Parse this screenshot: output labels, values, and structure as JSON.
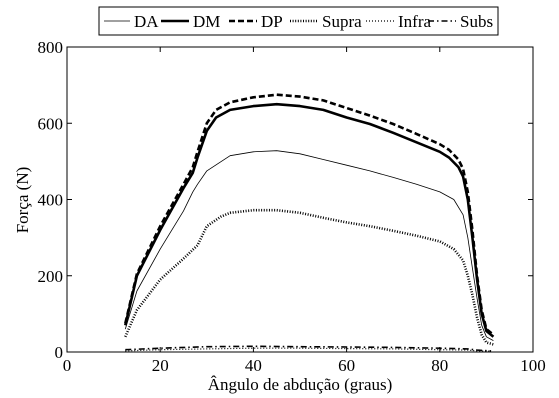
{
  "chart_data": {
    "type": "line",
    "title": "",
    "xlabel": "Ângulo de abdução (graus)",
    "ylabel": "Força (N)",
    "xlim": [
      0,
      100
    ],
    "ylim": [
      0,
      800
    ],
    "xticks": [
      0,
      20,
      40,
      60,
      80,
      100
    ],
    "yticks": [
      0,
      200,
      400,
      600,
      800
    ],
    "grid": false,
    "legend_position": "top",
    "series": [
      {
        "name": "DA",
        "style": "solid-thin",
        "points": [
          [
            12.5,
            60
          ],
          [
            15,
            160
          ],
          [
            20,
            270
          ],
          [
            25,
            370
          ],
          [
            27,
            420
          ],
          [
            28,
            440
          ],
          [
            30,
            475
          ],
          [
            35,
            515
          ],
          [
            40,
            525
          ],
          [
            45,
            528
          ],
          [
            50,
            520
          ],
          [
            55,
            505
          ],
          [
            60,
            490
          ],
          [
            65,
            475
          ],
          [
            70,
            458
          ],
          [
            75,
            440
          ],
          [
            80,
            420
          ],
          [
            83,
            400
          ],
          [
            85,
            360
          ],
          [
            86,
            300
          ],
          [
            87,
            220
          ],
          [
            88,
            140
          ],
          [
            89,
            70
          ],
          [
            90,
            40
          ],
          [
            91.5,
            30
          ]
        ]
      },
      {
        "name": "DM",
        "style": "solid-thick",
        "points": [
          [
            12.5,
            70
          ],
          [
            15,
            200
          ],
          [
            20,
            320
          ],
          [
            25,
            430
          ],
          [
            27,
            470
          ],
          [
            28,
            510
          ],
          [
            30,
            580
          ],
          [
            32,
            615
          ],
          [
            35,
            635
          ],
          [
            40,
            645
          ],
          [
            45,
            650
          ],
          [
            50,
            645
          ],
          [
            55,
            635
          ],
          [
            60,
            615
          ],
          [
            65,
            598
          ],
          [
            70,
            575
          ],
          [
            75,
            550
          ],
          [
            80,
            525
          ],
          [
            82,
            510
          ],
          [
            84,
            485
          ],
          [
            85,
            460
          ],
          [
            86,
            400
          ],
          [
            87,
            300
          ],
          [
            88,
            190
          ],
          [
            89,
            100
          ],
          [
            90,
            55
          ],
          [
            91.5,
            40
          ]
        ]
      },
      {
        "name": "DP",
        "style": "dashed-thick",
        "points": [
          [
            12.5,
            75
          ],
          [
            15,
            205
          ],
          [
            20,
            330
          ],
          [
            25,
            440
          ],
          [
            27,
            485
          ],
          [
            28,
            525
          ],
          [
            30,
            600
          ],
          [
            32,
            635
          ],
          [
            35,
            655
          ],
          [
            40,
            668
          ],
          [
            45,
            675
          ],
          [
            50,
            670
          ],
          [
            55,
            660
          ],
          [
            60,
            640
          ],
          [
            65,
            620
          ],
          [
            70,
            598
          ],
          [
            75,
            572
          ],
          [
            80,
            545
          ],
          [
            82,
            530
          ],
          [
            84,
            505
          ],
          [
            85,
            480
          ],
          [
            86,
            420
          ],
          [
            87,
            320
          ],
          [
            88,
            200
          ],
          [
            89,
            110
          ],
          [
            90,
            60
          ],
          [
            91.5,
            45
          ]
        ]
      },
      {
        "name": "Supra",
        "style": "dotted-thick",
        "points": [
          [
            12.5,
            40
          ],
          [
            15,
            110
          ],
          [
            20,
            190
          ],
          [
            25,
            245
          ],
          [
            28,
            280
          ],
          [
            30,
            330
          ],
          [
            33,
            355
          ],
          [
            35,
            365
          ],
          [
            40,
            372
          ],
          [
            45,
            372
          ],
          [
            50,
            365
          ],
          [
            55,
            352
          ],
          [
            60,
            340
          ],
          [
            65,
            330
          ],
          [
            70,
            318
          ],
          [
            75,
            305
          ],
          [
            80,
            290
          ],
          [
            83,
            270
          ],
          [
            85,
            240
          ],
          [
            86,
            200
          ],
          [
            87,
            150
          ],
          [
            88,
            90
          ],
          [
            89,
            45
          ],
          [
            90,
            25
          ],
          [
            91.5,
            20
          ]
        ]
      },
      {
        "name": "Infra",
        "style": "dotted-thin",
        "points": [
          [
            12.5,
            3
          ],
          [
            20,
            6
          ],
          [
            30,
            8
          ],
          [
            40,
            10
          ],
          [
            50,
            10
          ],
          [
            60,
            9
          ],
          [
            70,
            8
          ],
          [
            80,
            6
          ],
          [
            86,
            5
          ],
          [
            88,
            3
          ],
          [
            91,
            2
          ]
        ]
      },
      {
        "name": "Subs",
        "style": "dashdot",
        "points": [
          [
            12.5,
            6
          ],
          [
            20,
            10
          ],
          [
            30,
            14
          ],
          [
            40,
            15
          ],
          [
            50,
            14
          ],
          [
            60,
            13
          ],
          [
            70,
            12
          ],
          [
            80,
            10
          ],
          [
            86,
            8
          ],
          [
            88,
            5
          ],
          [
            91,
            3
          ]
        ]
      }
    ]
  }
}
